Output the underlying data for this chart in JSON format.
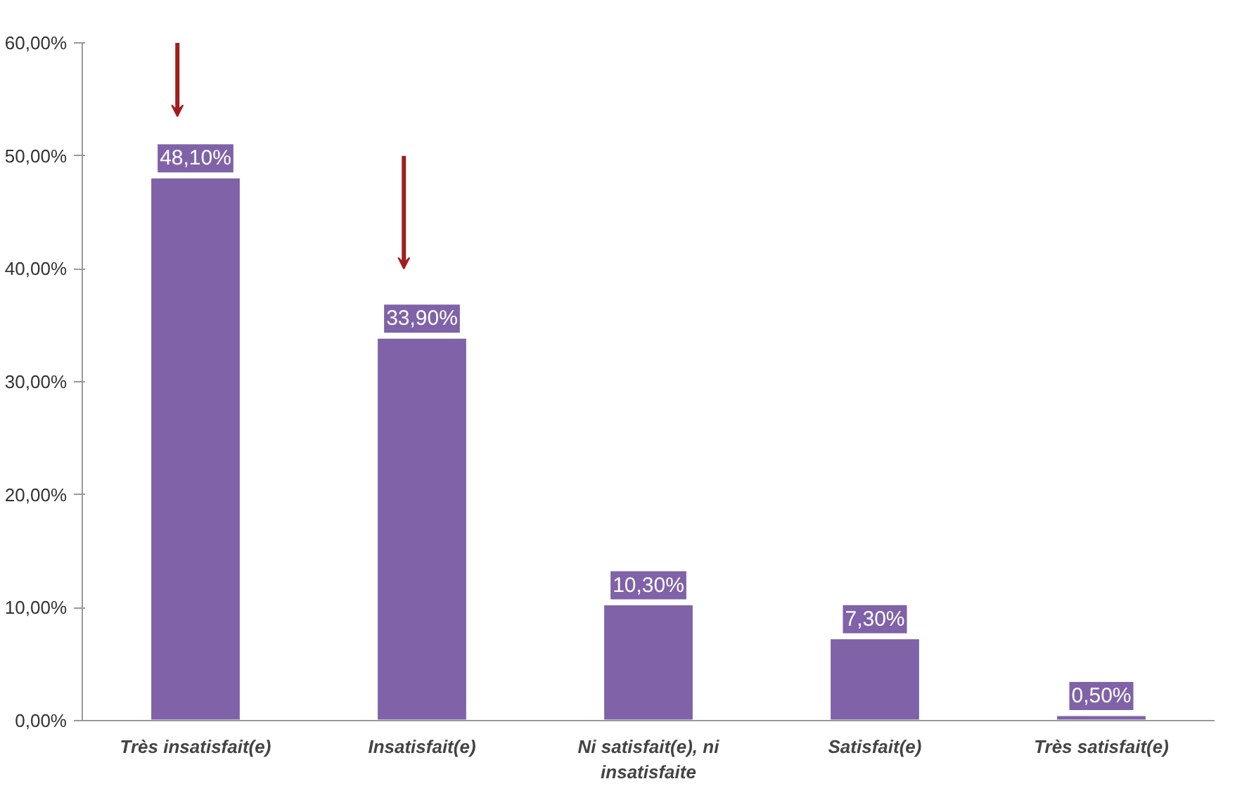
{
  "chart_data": {
    "type": "bar",
    "categories": [
      "Très insatisfait(e)",
      "Insatisfait(e)",
      "Ni satisfait(e), ni insatisfaite",
      "Satisfait(e)",
      "Très satisfait(e)"
    ],
    "values": [
      48.1,
      33.9,
      10.3,
      7.3,
      0.5
    ],
    "value_labels": [
      "48,10%",
      "33,90%",
      "10,30%",
      "7,30%",
      "0,50%"
    ],
    "color": "#7f62a8",
    "ylim": [
      0,
      60
    ],
    "yticks": [
      {
        "value": 0,
        "label": "0,00%"
      },
      {
        "value": 10,
        "label": "10,00%"
      },
      {
        "value": 20,
        "label": "20,00%"
      },
      {
        "value": 30,
        "label": "30,00%"
      },
      {
        "value": 40,
        "label": "40,00%"
      },
      {
        "value": 50,
        "label": "50,00%"
      },
      {
        "value": 60,
        "label": "60,00%"
      }
    ],
    "grid": false
  }
}
